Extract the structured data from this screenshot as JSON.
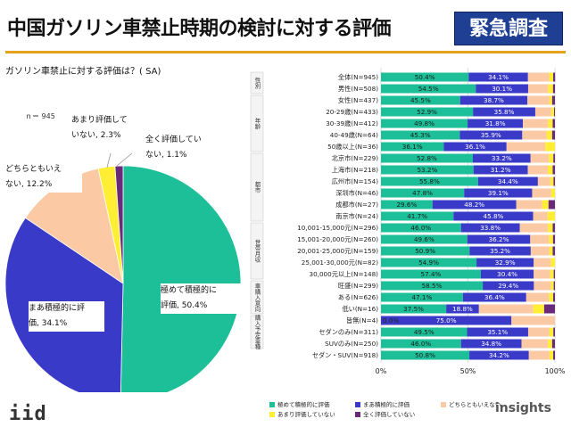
{
  "title": "中国ガソリン車禁止時期の検討に対する評価",
  "badge": "緊急調査",
  "question": "ガソリン車禁止に対する評価は？( SA)",
  "pie_n_label": "ｎ＝ 945",
  "brand": "iid",
  "watermark": "insights",
  "colors": {
    "title_rule": "#e3a21a",
    "badge_bg": "#1f3f94",
    "series": [
      "#1cbf98",
      "#3a3ac8",
      "#fbc9a3",
      "#ffee33",
      "#6a2a7a"
    ]
  },
  "chart_data": [
    {
      "type": "pie",
      "slices": [
        {
          "name": "極めて積極的に評価",
          "value": 50.4,
          "label": "極めて積極的に\n評価, 50.4%"
        },
        {
          "name": "まあ積極的に評価",
          "value": 34.1,
          "label": "まあ積極的に評\n価, 34.1%"
        },
        {
          "name": "どちらともいえない",
          "value": 12.2,
          "label": "どちらともいえ\nない, 12.2%"
        },
        {
          "name": "あまり評価していない",
          "value": 2.3,
          "label": "あまり評価して\nいない, 2.3%"
        },
        {
          "name": "全く評価していない",
          "value": 1.1,
          "label": "全く評価してい\nない, 1.1%"
        }
      ]
    },
    {
      "type": "bar",
      "orientation": "horizontal",
      "stacked": true,
      "xlim": [
        0,
        100
      ],
      "x_ticks": [
        "0%",
        "50%",
        "100%"
      ],
      "series_names": [
        "極めて積極的に評価",
        "まあ積極的に評価",
        "どちらともいえない",
        "あまり評価していない",
        "全く評価していない"
      ],
      "groups": [
        {
          "name": "性別",
          "start": 1,
          "end": 2
        },
        {
          "name": "年齢",
          "start": 3,
          "end": 7
        },
        {
          "name": "都市",
          "start": 8,
          "end": 13
        },
        {
          "name": "世帯月収",
          "start": 14,
          "end": 18
        },
        {
          "name": "車購入意向",
          "start": 19,
          "end": 21
        },
        {
          "name": "購入予定車種",
          "start": 22,
          "end": 24
        }
      ],
      "categories": [
        "全体(N=945)",
        "男性(N=508)",
        "女性(N=437)",
        "20-29歳(N=433)",
        "30-39歳(N=412)",
        "40-49歳(N=64)",
        "50歳以上(N=36)",
        "北京市(N=229)",
        "上海市(N=218)",
        "広州市(N=154)",
        "深圳市(N=46)",
        "成都市(N=27)",
        "南京市(N=24)",
        "10,001-15,000元(N=296)",
        "15,001-20,000元(N=260)",
        "20,001-25,000元(N=159)",
        "25,001-30,000元(N=82)",
        "30,000元以上(N=148)",
        "旺盛(N=299)",
        "ある(N=626)",
        "低い(N=16)",
        "皆無(N=4)",
        "セダンのみ(N=311)",
        "SUVのみ(N=250)",
        "セダン・SUV(N=918)"
      ],
      "rows": [
        [
          50.4,
          34.1,
          12.2,
          2.3,
          1.1
        ],
        [
          54.5,
          30.1,
          11.5,
          2.8,
          1.1
        ],
        [
          45.5,
          38.7,
          12.6,
          1.6,
          1.6
        ],
        [
          52.9,
          35.8,
          9.2,
          1.6,
          0.5
        ],
        [
          49.8,
          31.8,
          14.5,
          2.6,
          1.3
        ],
        [
          45.3,
          35.9,
          14.1,
          3.1,
          1.6
        ],
        [
          36.1,
          36.1,
          22.2,
          5.6,
          0
        ],
        [
          52.8,
          33.2,
          10.5,
          2.6,
          0.9
        ],
        [
          53.2,
          31.2,
          11.5,
          2.8,
          1.3
        ],
        [
          55.8,
          34.4,
          7.1,
          1.9,
          0.8
        ],
        [
          47.8,
          39.1,
          10.9,
          2.2,
          0
        ],
        [
          29.6,
          48.2,
          14.8,
          3.7,
          3.7
        ],
        [
          41.7,
          45.8,
          8.3,
          4.2,
          0
        ],
        [
          46.0,
          33.8,
          16.2,
          2.7,
          1.3
        ],
        [
          49.6,
          36.2,
          10.8,
          2.3,
          1.1
        ],
        [
          50.9,
          35.2,
          10.7,
          1.9,
          1.3
        ],
        [
          54.9,
          32.9,
          9.8,
          2.4,
          0
        ],
        [
          57.4,
          30.4,
          9.5,
          2.0,
          0.7
        ],
        [
          58.5,
          29.4,
          9.7,
          1.7,
          0.7
        ],
        [
          47.1,
          36.4,
          13.1,
          2.4,
          1.0
        ],
        [
          37.5,
          18.8,
          31.2,
          6.3,
          6.2
        ],
        [
          0.0,
          75.0,
          25.0,
          0,
          0
        ],
        [
          49.5,
          35.1,
          12.2,
          2.3,
          0.9
        ],
        [
          46.0,
          34.8,
          15.2,
          2.4,
          1.6
        ],
        [
          50.8,
          34.2,
          11.8,
          2.2,
          1.0
        ]
      ]
    }
  ]
}
